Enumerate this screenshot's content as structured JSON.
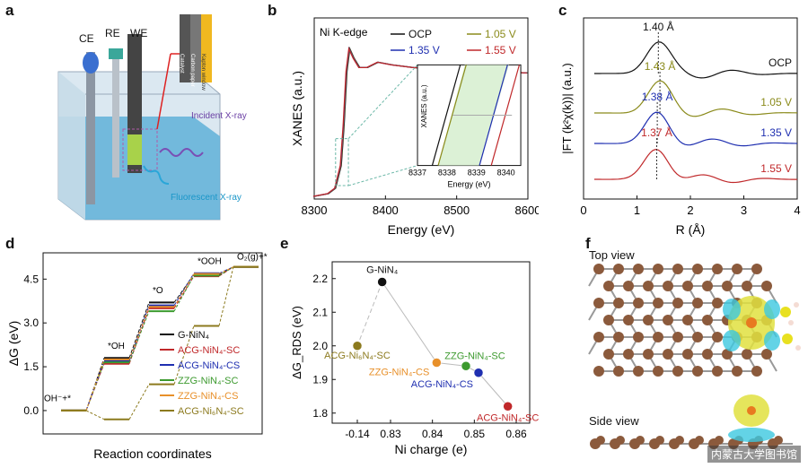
{
  "panels": {
    "a": {
      "label": "a",
      "electrodes": [
        "CE",
        "RE",
        "WE"
      ],
      "layers": [
        "Catalyst",
        "Carbon paper",
        "Kapton window"
      ],
      "incident": "Incident X-ray",
      "fluorescent": "Fluorescent X-ray"
    },
    "b": {
      "label": "b",
      "inner_title": "Ni K-edge",
      "inset_ylabel": "XANES (a.u.)",
      "inset_xlabel": "Energy (eV)"
    },
    "c": {
      "label": "c",
      "peak_labels": [
        "1.40 Å",
        "1.43 Å",
        "1.38 Å",
        "1.37 Å"
      ]
    },
    "d": {
      "label": "d",
      "states": [
        "OH⁻+*",
        "*OH",
        "*O",
        "*OOH",
        "O₂(g)+*"
      ]
    },
    "e": {
      "label": "e"
    },
    "f": {
      "label": "f",
      "top_view": "Top view",
      "side_view": "Side view"
    }
  },
  "watermark": "内蒙古大学图书馆",
  "colors": {
    "black": "#111111",
    "olive": "#8a8a1a",
    "blue": "#1f2fb0",
    "red": "#c0282a",
    "green": "#3d9a2f",
    "orange": "#e8902a",
    "brown_olive": "#8c7a1e",
    "atom": "#8b5a3c"
  },
  "chart_data": [
    {
      "id": "b",
      "type": "line",
      "xlabel": "Energy (eV)",
      "ylabel": "XANES (a.u.)",
      "xlim": [
        8300,
        8600
      ],
      "xticks": [
        8300,
        8400,
        8500,
        8600
      ],
      "series": [
        {
          "name": "OCP",
          "color": "#111111"
        },
        {
          "name": "1.05 V",
          "color": "#8a8a1a"
        },
        {
          "name": "1.35 V",
          "color": "#1f2fb0"
        },
        {
          "name": "1.55 V",
          "color": "#c0282a"
        }
      ],
      "curve_x": [
        8300,
        8320,
        8330,
        8338,
        8342,
        8346,
        8350,
        8356,
        8364,
        8375,
        8390,
        8410,
        8440,
        8480,
        8520,
        8560,
        8600
      ],
      "curve_y": [
        0.02,
        0.04,
        0.08,
        0.25,
        0.55,
        0.95,
        1.12,
        1.05,
        0.98,
        0.98,
        1.02,
        1.0,
        0.98,
        0.97,
        0.96,
        0.95,
        0.94
      ],
      "inset": {
        "xlim": [
          8337,
          8340.5
        ],
        "xticks": [
          8337,
          8338,
          8339,
          8340
        ],
        "edge_x": [
          8337.5,
          8337.7,
          8339.1,
          8339.5
        ]
      }
    },
    {
      "id": "c",
      "type": "line",
      "xlabel": "R (Å)",
      "ylabel": "|FT (k²χ(k))| (a.u.)",
      "xlim": [
        0,
        4
      ],
      "xticks": [
        0,
        1,
        2,
        3,
        4
      ],
      "series": [
        {
          "name": "OCP",
          "color": "#111111",
          "peak": 1.4
        },
        {
          "name": "1.05 V",
          "color": "#8a8a1a",
          "peak": 1.43
        },
        {
          "name": "1.35 V",
          "color": "#1f2fb0",
          "peak": 1.38
        },
        {
          "name": "1.55 V",
          "color": "#c0282a",
          "peak": 1.37
        }
      ]
    },
    {
      "id": "d",
      "type": "line",
      "xlabel": "Reaction coordinates",
      "ylabel": "ΔG (eV)",
      "ylim": [
        -0.8,
        5.4
      ],
      "yticks": [
        "0.0",
        "1.5",
        "3.0",
        "4.5"
      ],
      "ytick_values": [
        0,
        1.5,
        3.0,
        4.5
      ],
      "steps": [
        "OH⁻+*",
        "*OH",
        "*O",
        "*OOH",
        "O₂(g)+*"
      ],
      "series": [
        {
          "name": "G-NiN₄",
          "color": "#111111",
          "values": [
            0,
            1.8,
            3.7,
            4.65,
            4.92
          ]
        },
        {
          "name": "ACG-NiN₄-SC",
          "color": "#c0282a",
          "values": [
            0,
            1.6,
            3.5,
            4.6,
            4.92
          ]
        },
        {
          "name": "ACG-NiN₄-CS",
          "color": "#1f2fb0",
          "values": [
            0,
            1.7,
            3.6,
            4.7,
            4.92
          ]
        },
        {
          "name": "ZZG-NiN₄-SC",
          "color": "#3d9a2f",
          "values": [
            0,
            1.65,
            3.4,
            4.62,
            4.92
          ]
        },
        {
          "name": "ZZG-NiN₄-CS",
          "color": "#e8902a",
          "values": [
            0,
            1.75,
            3.55,
            4.68,
            4.92
          ]
        },
        {
          "name": "ACG-Ni₆N₄-SC",
          "color": "#8c7a1e",
          "values": [
            0,
            -0.3,
            0.9,
            2.9,
            4.92
          ]
        }
      ]
    },
    {
      "id": "e",
      "type": "scatter",
      "xlabel": "Ni charge (e)",
      "ylabel": "ΔG_RDS (eV)",
      "xticks": [
        "-0.14",
        "0.83",
        "0.84",
        "0.85",
        "0.86"
      ],
      "yticks": [
        "1.8",
        "1.9",
        "2.0",
        "2.1",
        "2.2"
      ],
      "ylim": [
        1.77,
        2.25
      ],
      "points": [
        {
          "name": "G-NiN₄",
          "x": 0.828,
          "y": 2.19,
          "color": "#111111"
        },
        {
          "name": "ACG-Ni₆N₄-SC",
          "x": -0.14,
          "y": 2.0,
          "color": "#8c7a1e"
        },
        {
          "name": "ZZG-NiN₄-CS",
          "x": 0.841,
          "y": 1.95,
          "color": "#e8902a"
        },
        {
          "name": "ZZG-NiN₄-SC",
          "x": 0.848,
          "y": 1.94,
          "color": "#3d9a2f"
        },
        {
          "name": "ACG-NiN₄-CS",
          "x": 0.851,
          "y": 1.92,
          "color": "#1f2fb0"
        },
        {
          "name": "ACG-NiN₄-SC",
          "x": 0.858,
          "y": 1.82,
          "color": "#c0282a"
        }
      ]
    }
  ]
}
